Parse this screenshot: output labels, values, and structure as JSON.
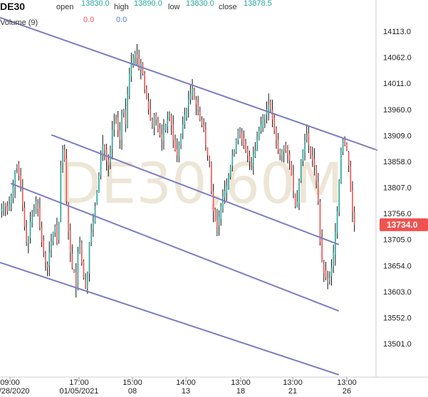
{
  "header": {
    "symbol": "DE30",
    "open_label": "open",
    "open_value": "13830.0",
    "high_label": "high",
    "high_value": "13890.0",
    "low_label": "low",
    "low_value": "13830.0",
    "close_label": "close",
    "close_value": "13878.5",
    "volume_label": "Volume (9)",
    "volume_value_1": "0.0",
    "volume_value_2": "0.0"
  },
  "watermark": "DE30,60M",
  "price_badge": "13734.0",
  "colors": {
    "up": "#26a69a",
    "down": "#ef5350",
    "channel": "#7c7cc0",
    "badge": "#ef5350",
    "vol_1": "#ef5350",
    "vol_2": "#4e7fd6",
    "watermark": "#ede6d6"
  },
  "chart_data": {
    "type": "candlestick",
    "title": "DE30",
    "xlabel": "",
    "ylabel": "",
    "ylim": [
      13460,
      14150
    ],
    "y_ticks": [
      "14113.0",
      "14062.0",
      "14011.0",
      "13960.0",
      "13909.0",
      "13858.0",
      "13807.0",
      "13756.0",
      "13705.0",
      "13654.0",
      "13603.0",
      "13552.0",
      "13501.0"
    ],
    "x_ticks": [
      {
        "time": "09:00",
        "date": "12/28/2020"
      },
      {
        "time": "17:00",
        "date": "01/05/2021"
      },
      {
        "time": "15:00",
        "date": "08"
      },
      {
        "time": "14:00",
        "date": "13"
      },
      {
        "time": "13:00",
        "date": "18"
      },
      {
        "time": "13:00",
        "date": "21"
      },
      {
        "time": "13:00",
        "date": "26"
      }
    ],
    "close_path": [
      13765,
      13775,
      13770,
      13760,
      13775,
      13790,
      13810,
      13840,
      13850,
      13830,
      13805,
      13770,
      13730,
      13700,
      13710,
      13740,
      13750,
      13760,
      13780,
      13765,
      13730,
      13700,
      13680,
      13660,
      13650,
      13680,
      13700,
      13720,
      13730,
      13700,
      13740,
      13850,
      13880,
      13860,
      13780,
      13720,
      13680,
      13650,
      13640,
      13610,
      13680,
      13700,
      13660,
      13630,
      13610,
      13640,
      13700,
      13720,
      13740,
      13770,
      13800,
      13830,
      13870,
      13890,
      13880,
      13860,
      13850,
      13880,
      13920,
      13930,
      13940,
      13920,
      13900,
      13950,
      13960,
      13930,
      13990,
      14030,
      14050,
      14060,
      14070,
      14060,
      14040,
      14050,
      14030,
      14000,
      13980,
      13960,
      13940,
      13930,
      13950,
      13940,
      13920,
      13910,
      13900,
      13920,
      13930,
      13940,
      13950,
      13930,
      13900,
      13880,
      13870,
      13890,
      13910,
      13930,
      13950,
      13960,
      13980,
      13990,
      14000,
      13980,
      13970,
      13960,
      13940,
      13930,
      13920,
      13890,
      13870,
      13860,
      13800,
      13760,
      13740,
      13730,
      13750,
      13770,
      13790,
      13800,
      13810,
      13830,
      13850,
      13870,
      13880,
      13900,
      13920,
      13910,
      13900,
      13890,
      13880,
      13870,
      13860,
      13850,
      13870,
      13880,
      13900,
      13920,
      13930,
      13940,
      13950,
      13960,
      13970,
      13960,
      13940,
      13920,
      13900,
      13880,
      13870,
      13880,
      13890,
      13880,
      13870,
      13860,
      13830,
      13800,
      13770,
      13780,
      13820,
      13860,
      13880,
      13900,
      13910,
      13890,
      13870,
      13860,
      13850,
      13820,
      13780,
      13700,
      13660,
      13640,
      13630,
      13620,
      13630,
      13650,
      13680,
      13720,
      13760,
      13820,
      13880,
      13900,
      13890,
      13880,
      13850,
      13800,
      13760,
      13734
    ],
    "channel_lines": [
      {
        "from": [
          0,
          14140
        ],
        "to": [
          176,
          13880
        ]
      },
      {
        "from": [
          24,
          13910
        ],
        "to": [
          158,
          13695
        ]
      },
      {
        "from": [
          5,
          13815
        ],
        "to": [
          158,
          13565
        ]
      },
      {
        "from": [
          0,
          13660
        ],
        "to": [
          158,
          13440
        ]
      }
    ],
    "last_price": 13734.0,
    "grid": false,
    "legend": "none"
  }
}
